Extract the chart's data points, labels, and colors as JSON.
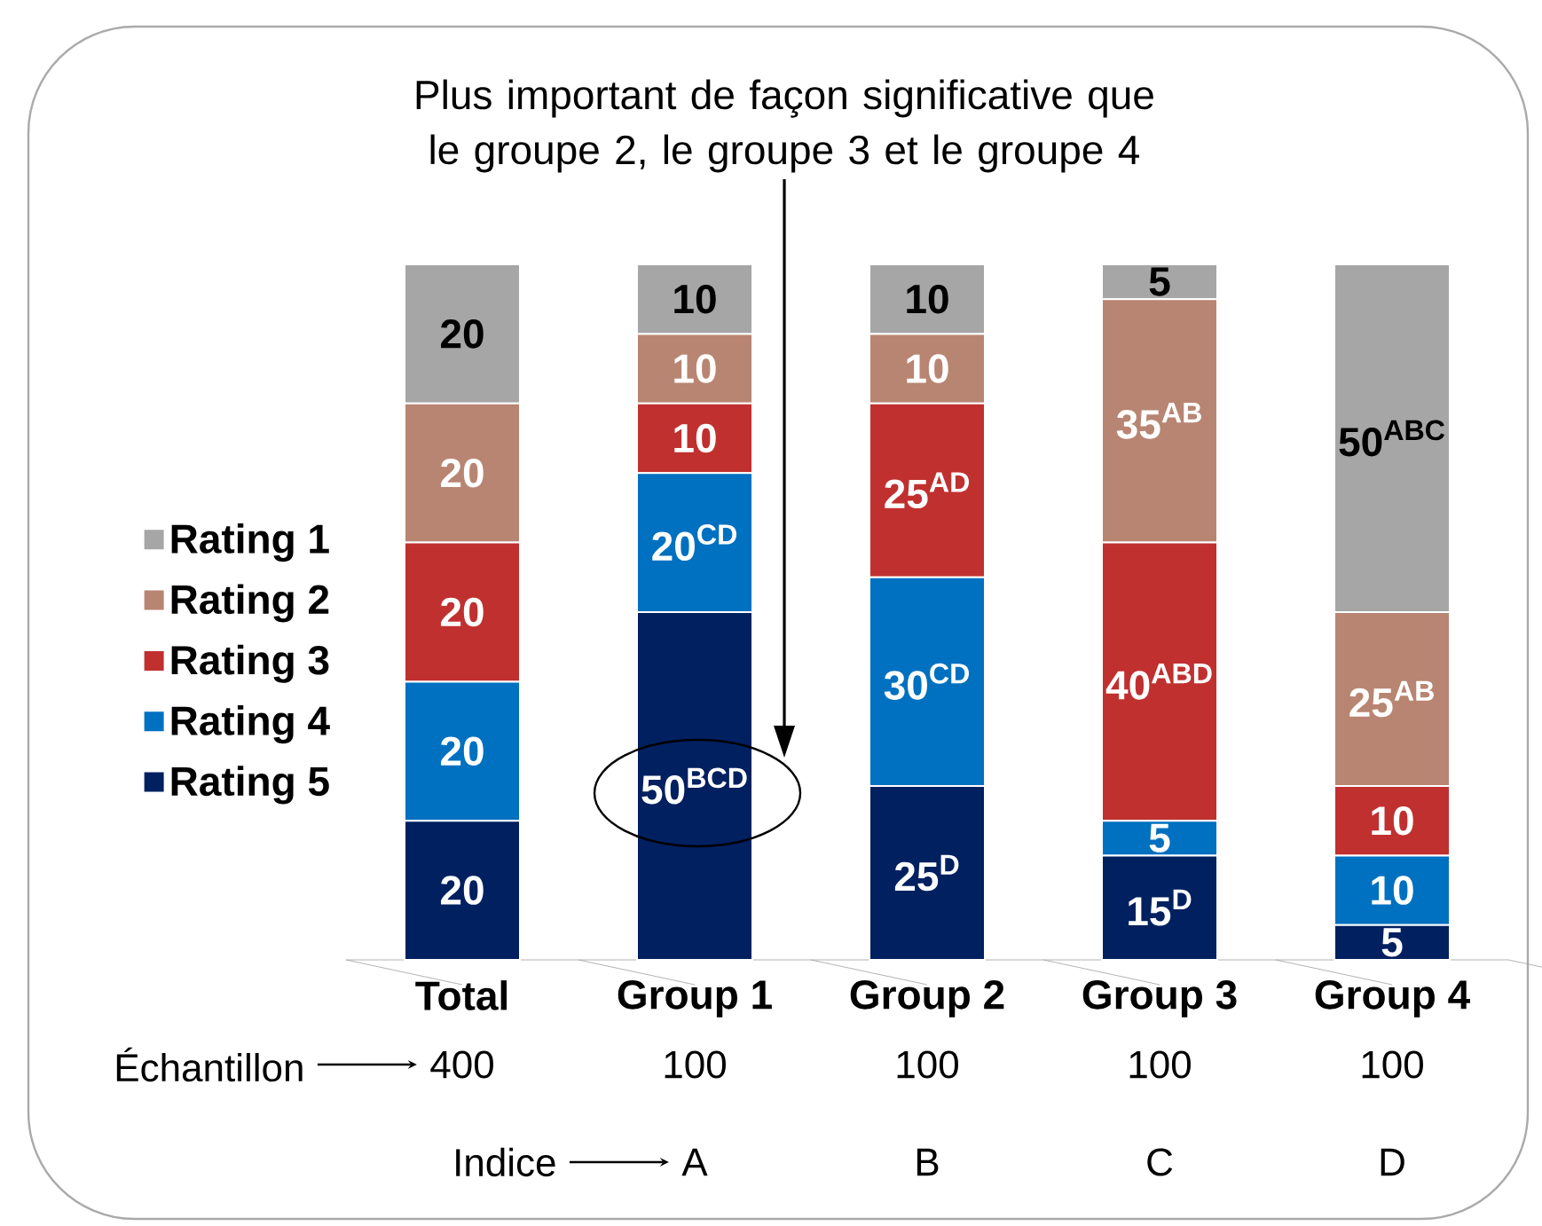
{
  "chart_data": {
    "type": "bar",
    "stacked": true,
    "legend": "left",
    "categories": [
      "Total",
      "Group 1",
      "Group 2",
      "Group 3",
      "Group 4"
    ],
    "series": [
      {
        "name": "Rating 5",
        "color": "#002060",
        "values": [
          20,
          50,
          25,
          15,
          5
        ],
        "value_labels": [
          "20",
          "50$^{BCD}$",
          "25$^{D}$",
          "15$^{D}$",
          "5"
        ]
      },
      {
        "name": "Rating 4",
        "color": "#0070c0",
        "values": [
          20,
          20,
          30,
          5,
          10
        ],
        "value_labels": [
          "20",
          "20$^{CD}$",
          "30$^{CD}$",
          "5",
          "10"
        ]
      },
      {
        "name": "Rating 3",
        "color": "#c0302f",
        "values": [
          20,
          10,
          25,
          40,
          10
        ],
        "value_labels": [
          "20",
          "10",
          "25$^{AD}$",
          "40$^{ABD}$",
          "10"
        ]
      },
      {
        "name": "Rating 2",
        "color": "#b88572",
        "values": [
          20,
          10,
          10,
          35,
          25
        ],
        "value_labels": [
          "20",
          "10",
          "10",
          "35$^{AB}$",
          "25$^{AB}$"
        ]
      },
      {
        "name": "Rating 1",
        "color": "#a6a6a6",
        "values": [
          20,
          10,
          10,
          5,
          50
        ],
        "value_labels": [
          "20",
          "10",
          "10",
          "5",
          "50$^{ABC}$"
        ]
      }
    ],
    "annotations": [
      "Plus important de façon significative que le groupe 2, le groupe 3 et le groupe 4",
      "Échantillon",
      "400",
      "100",
      "100",
      "100",
      "100",
      "Indice",
      "A",
      "B",
      "C",
      "D"
    ]
  }
}
